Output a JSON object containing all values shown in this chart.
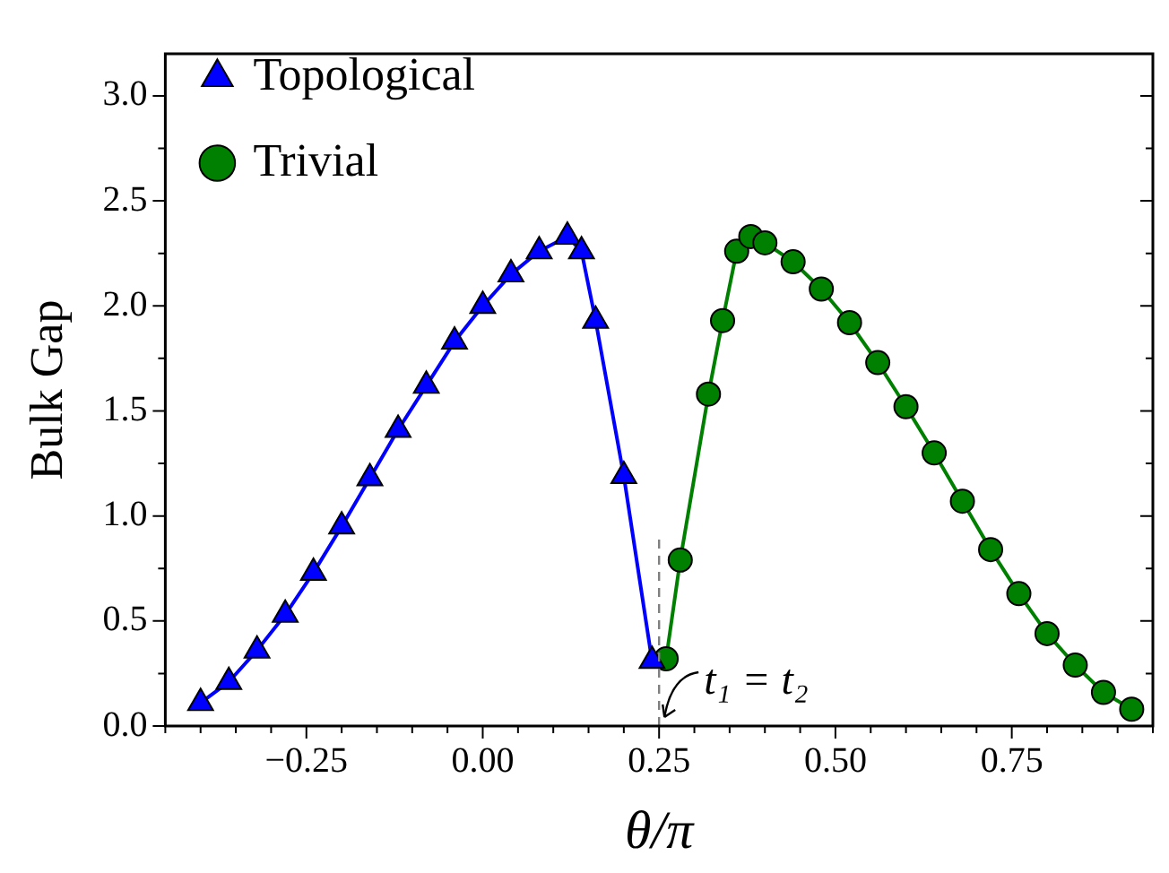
{
  "chart_data": {
    "type": "line",
    "xlabel": "θ/π",
    "ylabel": "Bulk Gap",
    "xlim": [
      -0.45,
      0.95
    ],
    "xticks": [
      {
        "value": -0.45,
        "label": null
      },
      {
        "value": -0.4,
        "label": null
      },
      {
        "value": -0.35,
        "label": null
      },
      {
        "value": -0.3,
        "label": null
      },
      {
        "value": -0.25,
        "label": "−0.25"
      },
      {
        "value": -0.2,
        "label": null
      },
      {
        "value": -0.15,
        "label": null
      },
      {
        "value": -0.1,
        "label": null
      },
      {
        "value": -0.05,
        "label": null
      },
      {
        "value": 0,
        "label": "0.00"
      },
      {
        "value": 0.05,
        "label": null
      },
      {
        "value": 0.1,
        "label": null
      },
      {
        "value": 0.15,
        "label": null
      },
      {
        "value": 0.2,
        "label": null
      },
      {
        "value": 0.25,
        "label": "0.25"
      },
      {
        "value": 0.3,
        "label": null
      },
      {
        "value": 0.35,
        "label": null
      },
      {
        "value": 0.4,
        "label": null
      },
      {
        "value": 0.45,
        "label": null
      },
      {
        "value": 0.5,
        "label": "0.50"
      },
      {
        "value": 0.55,
        "label": null
      },
      {
        "value": 0.6,
        "label": null
      },
      {
        "value": 0.65,
        "label": null
      },
      {
        "value": 0.7,
        "label": null
      },
      {
        "value": 0.75,
        "label": "0.75"
      },
      {
        "value": 0.8,
        "label": null
      },
      {
        "value": 0.85,
        "label": null
      },
      {
        "value": 0.9,
        "label": null
      },
      {
        "value": 0.95,
        "label": null
      }
    ],
    "ylim": [
      0,
      3.2
    ],
    "yticks": [
      {
        "value": 0,
        "label": "0.0"
      },
      {
        "value": 0.25,
        "label": null
      },
      {
        "value": 0.5,
        "label": "0.5"
      },
      {
        "value": 0.75,
        "label": null
      },
      {
        "value": 1,
        "label": "1.0"
      },
      {
        "value": 1.25,
        "label": null
      },
      {
        "value": 1.5,
        "label": "1.5"
      },
      {
        "value": 1.75,
        "label": null
      },
      {
        "value": 2,
        "label": "2.0"
      },
      {
        "value": 2.25,
        "label": null
      },
      {
        "value": 2.5,
        "label": "2.5"
      },
      {
        "value": 2.75,
        "label": null
      },
      {
        "value": 3,
        "label": "3.0"
      }
    ],
    "legend": "top left",
    "grid": false,
    "series": [
      {
        "name": "Topological",
        "color": "#0000ff",
        "marker": "triangle",
        "x": [
          -0.4,
          -0.36,
          -0.32,
          -0.28,
          -0.24,
          -0.2,
          -0.16,
          -0.12,
          -0.08,
          -0.04,
          0,
          0.04,
          0.08,
          0.12,
          0.14,
          0.16,
          0.2,
          0.24
        ],
        "values": [
          0.11,
          0.21,
          0.36,
          0.53,
          0.73,
          0.95,
          1.18,
          1.41,
          1.62,
          1.83,
          2.0,
          2.15,
          2.26,
          2.33,
          2.26,
          1.93,
          1.19,
          0.31
        ]
      },
      {
        "name": "Trivial",
        "color": "#008000",
        "marker": "circle",
        "x": [
          0.26,
          0.28,
          0.32,
          0.34,
          0.36,
          0.38,
          0.4,
          0.44,
          0.48,
          0.52,
          0.56,
          0.6,
          0.64,
          0.68,
          0.72,
          0.76,
          0.8,
          0.84,
          0.88,
          0.92
        ],
        "values": [
          0.32,
          0.79,
          1.58,
          1.93,
          2.26,
          2.33,
          2.3,
          2.21,
          2.08,
          1.92,
          1.73,
          1.52,
          1.3,
          1.07,
          0.84,
          0.63,
          0.44,
          0.29,
          0.16,
          0.08
        ]
      }
    ],
    "ref_lines": [
      {
        "axis": "x",
        "value": 0.25,
        "color": "#808080",
        "line_style": "dashed"
      }
    ],
    "annotations": [
      {
        "text": "t₁ = t₂",
        "x": 0.25,
        "y": 0
      }
    ]
  }
}
